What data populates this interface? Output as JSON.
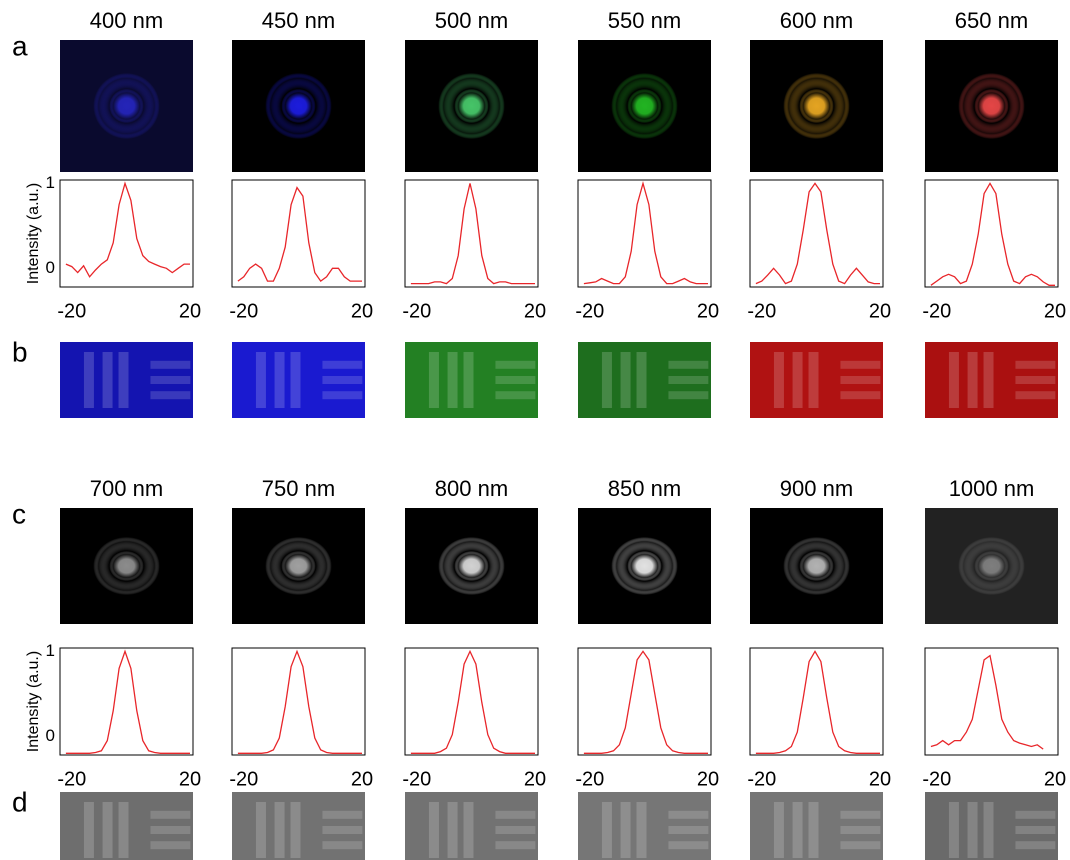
{
  "panel_labels": [
    "a",
    "b",
    "c",
    "d"
  ],
  "chart_data": [
    {
      "type": "line",
      "title": "400 nm",
      "ylabel": "Intensity (a.u.)",
      "image_color": "#2424b8",
      "image_background": "#0a0a2e",
      "target_color": "#1414b0",
      "x": [
        -22,
        -20,
        -18,
        -16,
        -14,
        -12,
        -10,
        -8,
        -6,
        -4,
        -2,
        0,
        2,
        4,
        6,
        8,
        10,
        12,
        14,
        16,
        18,
        20
      ],
      "series": [
        {
          "color": "#e8262a",
          "values": [
            0.05,
            0.02,
            -0.05,
            0.03,
            -0.1,
            -0.02,
            0.05,
            0.1,
            0.3,
            0.75,
            1.0,
            0.8,
            0.35,
            0.15,
            0.08,
            0.05,
            0.02,
            0.0,
            -0.05,
            0.0,
            0.05,
            0.05
          ]
        }
      ],
      "xlim": [
        -24,
        21
      ],
      "ylim": [
        -0.22,
        1.04
      ],
      "xticks": [
        -20,
        20
      ],
      "yticks": [
        0,
        1
      ]
    },
    {
      "type": "line",
      "title": "450 nm",
      "image_color": "#1c1cdc",
      "image_background": "#000000",
      "target_color": "#1a1ad0",
      "x": [
        -22,
        -20,
        -18,
        -16,
        -14,
        -12,
        -10,
        -8,
        -6,
        -4,
        -2,
        0,
        2,
        4,
        6,
        8,
        10,
        12,
        14,
        16,
        18,
        20
      ],
      "series": [
        {
          "color": "#e8262a",
          "values": [
            -0.15,
            -0.1,
            0.0,
            0.05,
            0.0,
            -0.15,
            -0.15,
            0.0,
            0.25,
            0.75,
            0.95,
            0.85,
            0.3,
            -0.05,
            -0.15,
            -0.1,
            0.0,
            0.0,
            -0.1,
            -0.15,
            -0.15,
            -0.15
          ]
        }
      ],
      "xlim": [
        -24,
        21
      ],
      "ylim": [
        -0.22,
        1.04
      ],
      "xticks": [
        -20,
        20
      ]
    },
    {
      "type": "line",
      "title": "500 nm",
      "image_color": "#46c468",
      "image_background": "#000000",
      "target_color": "#238023",
      "x": [
        -22,
        -20,
        -18,
        -16,
        -14,
        -12,
        -10,
        -8,
        -6,
        -4,
        -2,
        0,
        2,
        4,
        6,
        8,
        10,
        12,
        14,
        16,
        18,
        20
      ],
      "series": [
        {
          "color": "#e8262a",
          "values": [
            -0.18,
            -0.18,
            -0.18,
            -0.18,
            -0.16,
            -0.16,
            -0.18,
            -0.12,
            0.15,
            0.7,
            1.0,
            0.7,
            0.15,
            -0.12,
            -0.18,
            -0.16,
            -0.16,
            -0.18,
            -0.18,
            -0.18,
            -0.18,
            -0.18
          ]
        }
      ],
      "xlim": [
        -24,
        21
      ],
      "ylim": [
        -0.22,
        1.04
      ],
      "xticks": [
        -20,
        20
      ]
    },
    {
      "type": "line",
      "title": "550 nm",
      "image_color": "#22b422",
      "image_background": "#000000",
      "target_color": "#1e6e1e",
      "x": [
        -22,
        -20,
        -18,
        -16,
        -14,
        -12,
        -10,
        -8,
        -6,
        -4,
        -2,
        0,
        2,
        4,
        6,
        8,
        10,
        12,
        14,
        16,
        18,
        20
      ],
      "series": [
        {
          "color": "#e8262a",
          "values": [
            -0.18,
            -0.17,
            -0.16,
            -0.12,
            -0.15,
            -0.18,
            -0.18,
            -0.1,
            0.2,
            0.75,
            1.0,
            0.75,
            0.2,
            -0.1,
            -0.18,
            -0.18,
            -0.15,
            -0.12,
            -0.16,
            -0.18,
            -0.18,
            -0.18
          ]
        }
      ],
      "xlim": [
        -24,
        21
      ],
      "ylim": [
        -0.22,
        1.04
      ],
      "xticks": [
        -20,
        20
      ]
    },
    {
      "type": "line",
      "title": "600 nm",
      "image_color": "#e4a422",
      "image_background": "#000000",
      "target_color": "#b01212",
      "x": [
        -22,
        -20,
        -18,
        -16,
        -14,
        -12,
        -10,
        -8,
        -6,
        -4,
        -2,
        0,
        2,
        4,
        6,
        8,
        10,
        12,
        14,
        16,
        18,
        20
      ],
      "series": [
        {
          "color": "#e8262a",
          "values": [
            -0.18,
            -0.15,
            -0.08,
            0.0,
            -0.08,
            -0.18,
            -0.15,
            0.05,
            0.45,
            0.9,
            1.0,
            0.9,
            0.45,
            0.05,
            -0.15,
            -0.18,
            -0.08,
            0.0,
            -0.08,
            -0.16,
            -0.18,
            -0.18
          ]
        }
      ],
      "xlim": [
        -24,
        21
      ],
      "ylim": [
        -0.22,
        1.04
      ],
      "xticks": [
        -20,
        20
      ]
    },
    {
      "type": "line",
      "title": "650 nm",
      "image_color": "#e44646",
      "image_background": "#000000",
      "target_color": "#aa1010",
      "x": [
        -22,
        -20,
        -18,
        -16,
        -14,
        -12,
        -10,
        -8,
        -6,
        -4,
        -2,
        0,
        2,
        4,
        6,
        8,
        10,
        12,
        14,
        16,
        18,
        20
      ],
      "series": [
        {
          "color": "#e8262a",
          "values": [
            -0.2,
            -0.15,
            -0.1,
            -0.07,
            -0.1,
            -0.18,
            -0.15,
            0.05,
            0.4,
            0.88,
            1.0,
            0.88,
            0.4,
            0.05,
            -0.15,
            -0.18,
            -0.1,
            -0.07,
            -0.1,
            -0.16,
            -0.2,
            -0.2
          ]
        }
      ],
      "xlim": [
        -24,
        21
      ],
      "ylim": [
        -0.22,
        1.04
      ],
      "xticks": [
        -20,
        20
      ]
    },
    {
      "type": "line",
      "title": "700 nm",
      "ylabel": "Intensity (a.u.)",
      "image_color": "#8c8c8c",
      "image_background": "#000000",
      "target_color": "#6e6e6e",
      "x": [
        -22,
        -20,
        -18,
        -16,
        -14,
        -12,
        -10,
        -8,
        -6,
        -4,
        -2,
        0,
        2,
        4,
        6,
        8,
        10,
        12,
        14,
        16,
        18,
        20
      ],
      "series": [
        {
          "color": "#e8262a",
          "values": [
            -0.2,
            -0.2,
            -0.2,
            -0.2,
            -0.2,
            -0.19,
            -0.17,
            -0.05,
            0.3,
            0.8,
            1.0,
            0.8,
            0.3,
            -0.05,
            -0.17,
            -0.19,
            -0.2,
            -0.2,
            -0.2,
            -0.2,
            -0.2,
            -0.2
          ]
        }
      ],
      "xlim": [
        -24,
        21
      ],
      "ylim": [
        -0.22,
        1.04
      ],
      "xticks": [
        -20,
        20
      ],
      "yticks": [
        0,
        1
      ]
    },
    {
      "type": "line",
      "title": "750 nm",
      "image_color": "#a0a0a0",
      "image_background": "#000000",
      "target_color": "#727272",
      "x": [
        -22,
        -20,
        -18,
        -16,
        -14,
        -12,
        -10,
        -8,
        -6,
        -4,
        -2,
        0,
        2,
        4,
        6,
        8,
        10,
        12,
        14,
        16,
        18,
        20
      ],
      "series": [
        {
          "color": "#e8262a",
          "values": [
            -0.2,
            -0.2,
            -0.2,
            -0.2,
            -0.2,
            -0.19,
            -0.16,
            -0.02,
            0.35,
            0.82,
            1.0,
            0.82,
            0.35,
            -0.02,
            -0.16,
            -0.19,
            -0.2,
            -0.2,
            -0.2,
            -0.2,
            -0.2,
            -0.2
          ]
        }
      ],
      "xlim": [
        -24,
        21
      ],
      "ylim": [
        -0.22,
        1.04
      ],
      "xticks": [
        -20,
        20
      ]
    },
    {
      "type": "line",
      "title": "800 nm",
      "image_color": "#d2d2d2",
      "image_background": "#000000",
      "target_color": "#727272",
      "x": [
        -22,
        -20,
        -18,
        -16,
        -14,
        -12,
        -10,
        -8,
        -6,
        -4,
        -2,
        0,
        2,
        4,
        6,
        8,
        10,
        12,
        14,
        16,
        18,
        20
      ],
      "series": [
        {
          "color": "#e8262a",
          "values": [
            -0.2,
            -0.2,
            -0.2,
            -0.2,
            -0.2,
            -0.18,
            -0.14,
            0.02,
            0.4,
            0.85,
            1.0,
            0.85,
            0.4,
            0.02,
            -0.14,
            -0.18,
            -0.2,
            -0.2,
            -0.2,
            -0.2,
            -0.2,
            -0.2
          ]
        }
      ],
      "xlim": [
        -24,
        21
      ],
      "ylim": [
        -0.22,
        1.04
      ],
      "xticks": [
        -20,
        20
      ]
    },
    {
      "type": "line",
      "title": "850 nm",
      "image_color": "#e2e2e2",
      "image_background": "#000000",
      "target_color": "#767676",
      "x": [
        -22,
        -20,
        -18,
        -16,
        -14,
        -12,
        -10,
        -8,
        -6,
        -4,
        -2,
        0,
        2,
        4,
        6,
        8,
        10,
        12,
        14,
        16,
        18,
        20
      ],
      "series": [
        {
          "color": "#e8262a",
          "values": [
            -0.2,
            -0.2,
            -0.2,
            -0.2,
            -0.19,
            -0.17,
            -0.1,
            0.1,
            0.5,
            0.9,
            1.0,
            0.9,
            0.5,
            0.1,
            -0.1,
            -0.17,
            -0.19,
            -0.2,
            -0.2,
            -0.2,
            -0.2,
            -0.2
          ]
        }
      ],
      "xlim": [
        -24,
        21
      ],
      "ylim": [
        -0.22,
        1.04
      ],
      "xticks": [
        -20,
        20
      ]
    },
    {
      "type": "line",
      "title": "900 nm",
      "image_color": "#b2b2b2",
      "image_background": "#000000",
      "target_color": "#767676",
      "x": [
        -22,
        -20,
        -18,
        -16,
        -14,
        -12,
        -10,
        -8,
        -6,
        -4,
        -2,
        0,
        2,
        4,
        6,
        8,
        10,
        12,
        14,
        16,
        18,
        20
      ],
      "series": [
        {
          "color": "#e8262a",
          "values": [
            -0.2,
            -0.2,
            -0.2,
            -0.2,
            -0.19,
            -0.17,
            -0.12,
            0.05,
            0.45,
            0.88,
            1.0,
            0.88,
            0.45,
            0.05,
            -0.12,
            -0.17,
            -0.19,
            -0.2,
            -0.2,
            -0.2,
            -0.2,
            -0.2
          ]
        }
      ],
      "xlim": [
        -24,
        21
      ],
      "ylim": [
        -0.22,
        1.04
      ],
      "xticks": [
        -20,
        20
      ]
    },
    {
      "type": "line",
      "title": "1000 nm",
      "image_color": "#7e7e7e",
      "image_background": "#222222",
      "target_color": "#6a6a6a",
      "x": [
        -22,
        -20,
        -18,
        -16,
        -14,
        -12,
        -10,
        -8,
        -6,
        -4,
        -2,
        0,
        2,
        4,
        6,
        8,
        10,
        12,
        14,
        16,
        18,
        20
      ],
      "series": [
        {
          "color": "#e8262a",
          "values": [
            -0.12,
            -0.1,
            -0.05,
            -0.1,
            -0.05,
            -0.05,
            0.05,
            0.2,
            0.55,
            0.9,
            0.95,
            0.6,
            0.2,
            0.05,
            -0.05,
            -0.08,
            -0.1,
            -0.12,
            -0.1,
            -0.15,
            null,
            null
          ]
        }
      ],
      "xlim": [
        -24,
        21
      ],
      "ylim": [
        -0.22,
        1.04
      ],
      "xticks": [
        -20,
        20
      ]
    }
  ]
}
